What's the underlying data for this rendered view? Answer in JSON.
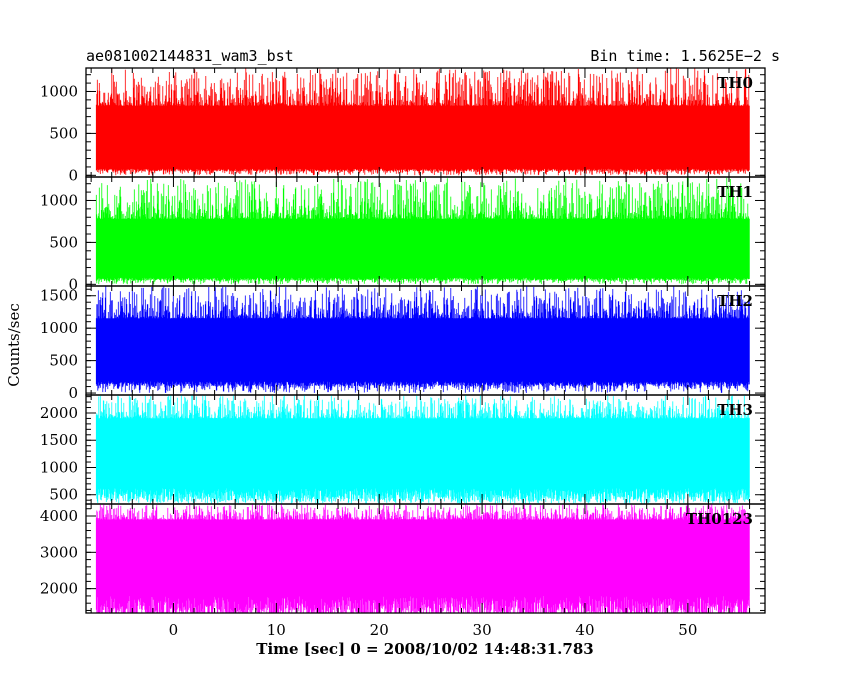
{
  "header": {
    "title": "ae081002144831_wam3_bst",
    "bin_time": "Bin time: 1.5625E−2 s"
  },
  "axes": {
    "ylabel": "Counts/sec",
    "xlabel": "Time [sec] 0 = 2008/10/02 14:48:31.783"
  },
  "chart_data": {
    "type": "line",
    "title": "ae081002144831_wam3_bst",
    "subtitle": "Bin time: 1.5625E−2 s",
    "xlabel": "Time [sec] 0 = 2008/10/02 14:48:31.783",
    "ylabel": "Counts/sec",
    "xlim": [
      -8.5,
      57.5
    ],
    "x_data_range": [
      -7.5,
      56
    ],
    "x_ticks": [
      0,
      10,
      20,
      30,
      40,
      50
    ],
    "x_tick_labels": [
      "0",
      "10",
      "20",
      "30",
      "40",
      "50"
    ],
    "grid": false,
    "panels": [
      {
        "name": "TH0",
        "color": "#ff0000",
        "ylim": [
          -20,
          1280
        ],
        "y_ticks": [
          0,
          500,
          1000
        ],
        "y_tick_labels": [
          "0",
          "500",
          "1000"
        ],
        "band_low": 80,
        "band_high": 830,
        "min": 0,
        "max": 1280,
        "mean": 480
      },
      {
        "name": "TH1",
        "color": "#00ff00",
        "ylim": [
          -20,
          1280
        ],
        "y_ticks": [
          0,
          500,
          1000
        ],
        "y_tick_labels": [
          "0",
          "500",
          "1000"
        ],
        "band_low": 80,
        "band_high": 780,
        "min": 0,
        "max": 1280,
        "mean": 440
      },
      {
        "name": "TH2",
        "color": "#0000ff",
        "ylim": [
          -30,
          1650
        ],
        "y_ticks": [
          0,
          500,
          1000,
          1500
        ],
        "y_tick_labels": [
          "0",
          "500",
          "1000",
          "1500"
        ],
        "band_low": 180,
        "band_high": 1150,
        "min": 0,
        "max": 1650,
        "mean": 650
      },
      {
        "name": "TH3",
        "color": "#00ffff",
        "ylim": [
          330,
          2330
        ],
        "y_ticks": [
          500,
          1000,
          1500,
          2000
        ],
        "y_tick_labels": [
          "500",
          "1000",
          "1500",
          "2000"
        ],
        "band_low": 620,
        "band_high": 1900,
        "min": 330,
        "max": 2330,
        "mean": 1250
      },
      {
        "name": "TH0123",
        "color": "#ff00ff",
        "ylim": [
          1330,
          4330
        ],
        "y_ticks": [
          2000,
          3000,
          4000
        ],
        "y_tick_labels": [
          "2000",
          "3000",
          "4000"
        ],
        "band_low": 1800,
        "band_high": 3900,
        "min": 1330,
        "max": 4330,
        "mean": 2900
      }
    ]
  }
}
